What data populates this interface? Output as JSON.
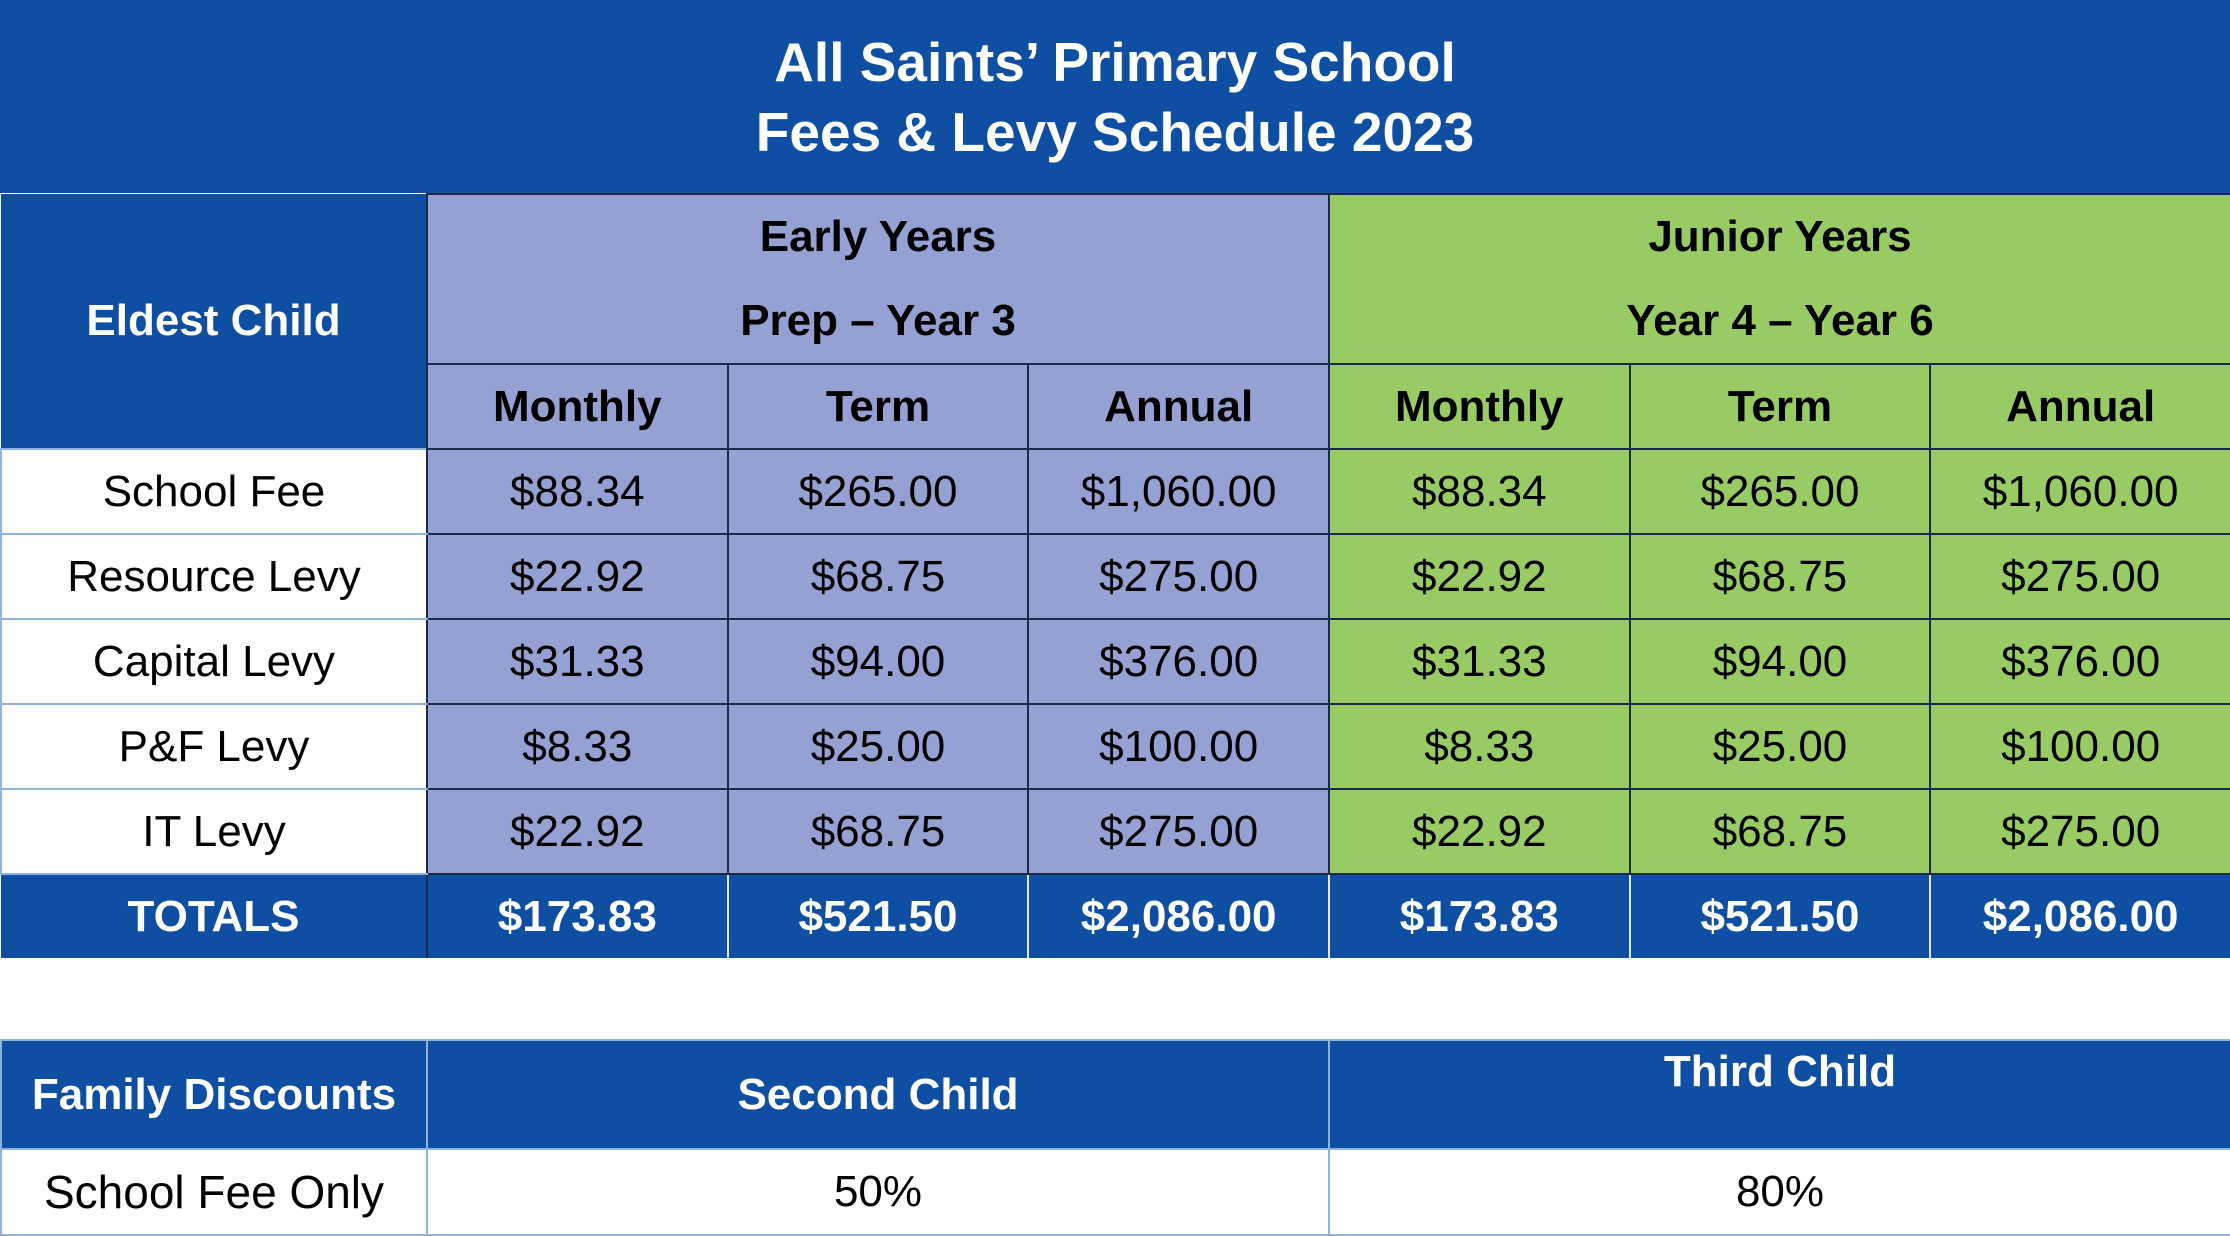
{
  "title": {
    "line1": "All Saints’ Primary School",
    "line2": "Fees & Levy Schedule 2023"
  },
  "header": {
    "eldest_label": "Eldest Child",
    "early": {
      "name": "Early Years",
      "range": "Prep – Year 3"
    },
    "junior": {
      "name": "Junior Years",
      "range": "Year 4 – Year 6"
    },
    "periods": [
      "Monthly",
      "Term",
      "Annual"
    ]
  },
  "rows": [
    {
      "label": "School Fee",
      "early": [
        "$88.34",
        "$265.00",
        "$1,060.00"
      ],
      "junior": [
        "$88.34",
        "$265.00",
        "$1,060.00"
      ]
    },
    {
      "label": "Resource Levy",
      "early": [
        "$22.92",
        "$68.75",
        "$275.00"
      ],
      "junior": [
        "$22.92",
        "$68.75",
        "$275.00"
      ]
    },
    {
      "label": "Capital Levy",
      "early": [
        "$31.33",
        "$94.00",
        "$376.00"
      ],
      "junior": [
        "$31.33",
        "$94.00",
        "$376.00"
      ]
    },
    {
      "label": "P&F Levy",
      "early": [
        "$8.33",
        "$25.00",
        "$100.00"
      ],
      "junior": [
        "$8.33",
        "$25.00",
        "$100.00"
      ]
    },
    {
      "label": "IT Levy",
      "early": [
        "$22.92",
        "$68.75",
        "$275.00"
      ],
      "junior": [
        "$22.92",
        "$68.75",
        "$275.00"
      ]
    }
  ],
  "totals": {
    "label": "TOTALS",
    "early": [
      "$173.83",
      "$521.50",
      "$2,086.00"
    ],
    "junior": [
      "$173.83",
      "$521.50",
      "$2,086.00"
    ]
  },
  "discounts": {
    "header_label": "Family Discounts",
    "second_child": "Second Child",
    "third_child": "Third Child",
    "row_label": "School Fee Only",
    "second_value": "50%",
    "third_value": "80%"
  },
  "colors": {
    "header_blue": "#0e4fa3",
    "early_years": "#95a1d3",
    "junior_years": "#98cb64"
  }
}
